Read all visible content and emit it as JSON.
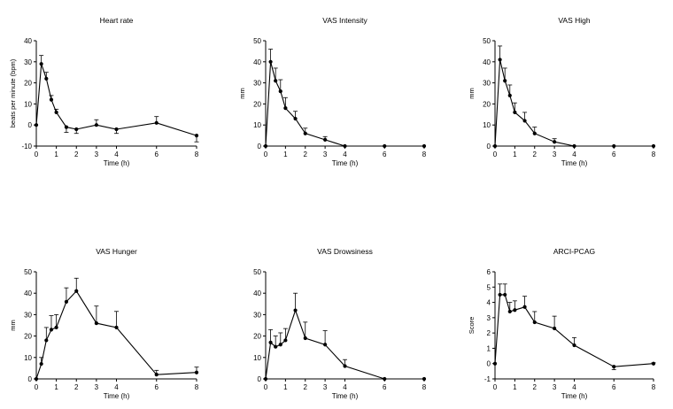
{
  "figure": {
    "time_ticks": [
      "0",
      "1",
      "2",
      "3",
      "4",
      "6",
      "8"
    ]
  },
  "chart_data": [
    {
      "type": "line",
      "title": "Heart rate",
      "xlabel": "Time (h)",
      "ylabel": "beats per minute (bpm)",
      "xlim": [
        0,
        8
      ],
      "ylim": [
        -10,
        40
      ],
      "yticks": [
        -10,
        0,
        10,
        20,
        30,
        40
      ],
      "xticks": [
        0,
        1,
        2,
        3,
        4,
        6,
        8
      ],
      "x": [
        0,
        0.25,
        0.5,
        0.75,
        1,
        1.5,
        2,
        3,
        4,
        6,
        8
      ],
      "y": [
        0,
        29,
        22,
        12,
        6,
        -1,
        -2,
        0,
        -2,
        1,
        -5
      ],
      "err": [
        0,
        4,
        3,
        2,
        1.5,
        2.5,
        2,
        2.5,
        2,
        3,
        3
      ]
    },
    {
      "type": "line",
      "title": "VAS Intensity",
      "xlabel": "Time (h)",
      "ylabel": "mm",
      "xlim": [
        0,
        8
      ],
      "ylim": [
        0,
        50
      ],
      "yticks": [
        0,
        10,
        20,
        30,
        40,
        50
      ],
      "xticks": [
        0,
        1,
        2,
        3,
        4,
        6,
        8
      ],
      "x": [
        0,
        0.25,
        0.5,
        0.75,
        1,
        1.5,
        2,
        3,
        4,
        6,
        8
      ],
      "y": [
        0,
        40,
        31,
        26,
        18,
        13,
        6,
        3,
        0,
        0,
        0
      ],
      "err": [
        0,
        6,
        6,
        5.5,
        5,
        3.5,
        2.5,
        1.5,
        0,
        0,
        0
      ]
    },
    {
      "type": "line",
      "title": "VAS High",
      "xlabel": "Time (h)",
      "ylabel": "mm",
      "xlim": [
        0,
        8
      ],
      "ylim": [
        0,
        50
      ],
      "yticks": [
        0,
        10,
        20,
        30,
        40,
        50
      ],
      "xticks": [
        0,
        1,
        2,
        3,
        4,
        6,
        8
      ],
      "x": [
        0,
        0.25,
        0.5,
        0.75,
        1,
        1.5,
        2,
        3,
        4,
        6,
        8
      ],
      "y": [
        0,
        41,
        31,
        24,
        16,
        12,
        6,
        2,
        0,
        0,
        0
      ],
      "err": [
        0,
        6.5,
        6,
        5,
        4.5,
        4,
        3,
        1.5,
        0,
        0,
        0
      ]
    },
    {
      "type": "line",
      "title": "VAS Hunger",
      "xlabel": "Time (h)",
      "ylabel": "mm",
      "xlim": [
        0,
        8
      ],
      "ylim": [
        0,
        50
      ],
      "yticks": [
        0,
        10,
        20,
        30,
        40,
        50
      ],
      "xticks": [
        0,
        1,
        2,
        3,
        4,
        6,
        8
      ],
      "x": [
        0,
        0.25,
        0.5,
        0.75,
        1,
        1.5,
        2,
        3,
        4,
        6,
        8
      ],
      "y": [
        0,
        7,
        18,
        23,
        24,
        36,
        41,
        26,
        24,
        2,
        3
      ],
      "err": [
        0,
        3,
        6,
        6.5,
        6,
        6.5,
        6,
        8,
        7.5,
        2,
        2.5
      ]
    },
    {
      "type": "line",
      "title": "VAS Drowsiness",
      "xlabel": "Time (h)",
      "ylabel": "",
      "xlim": [
        0,
        8
      ],
      "ylim": [
        0,
        50
      ],
      "yticks": [
        0,
        10,
        20,
        30,
        40,
        50
      ],
      "xticks": [
        0,
        1,
        2,
        3,
        4,
        6,
        8
      ],
      "x": [
        0,
        0.25,
        0.5,
        0.75,
        1,
        1.5,
        2,
        3,
        4,
        6,
        8
      ],
      "y": [
        0,
        17,
        15,
        16,
        18,
        32,
        19,
        16,
        6,
        0,
        0
      ],
      "err": [
        0,
        6,
        5,
        5.5,
        5.5,
        8,
        7.5,
        6.5,
        3,
        0,
        0
      ]
    },
    {
      "type": "line",
      "title": "ARCI-PCAG",
      "xlabel": "Time (h)",
      "ylabel": "Score",
      "xlim": [
        0,
        8
      ],
      "ylim": [
        -1,
        6
      ],
      "yticks": [
        -1,
        0,
        1,
        2,
        3,
        4,
        5,
        6
      ],
      "xticks": [
        0,
        1,
        2,
        3,
        4,
        6,
        8
      ],
      "x": [
        0,
        0.25,
        0.5,
        0.75,
        1,
        1.5,
        2,
        3,
        4,
        6,
        8
      ],
      "y": [
        0,
        4.5,
        4.5,
        3.4,
        3.5,
        3.7,
        2.7,
        2.3,
        1.2,
        -0.2,
        0
      ],
      "err": [
        0,
        0.7,
        0.7,
        0.6,
        0.6,
        0.7,
        0.7,
        0.8,
        0.5,
        0.2,
        0.05
      ]
    }
  ]
}
